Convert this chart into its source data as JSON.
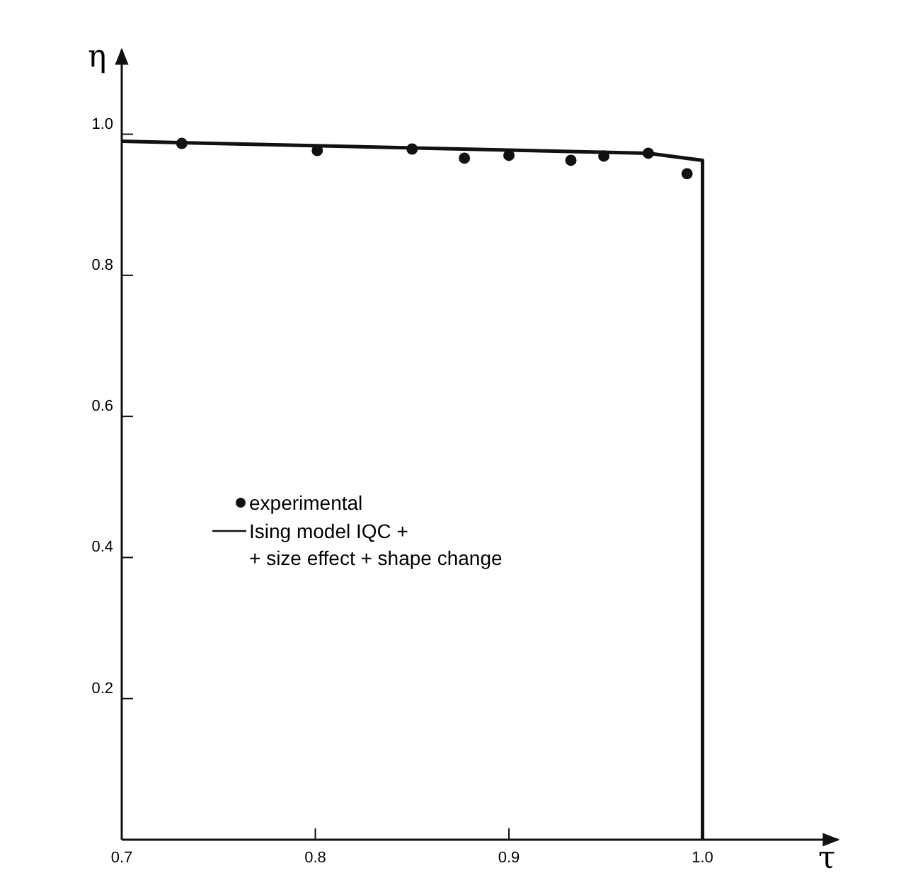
{
  "chart_data": {
    "type": "scatter",
    "xlabel": "τ",
    "ylabel": "η",
    "xlim": [
      0.7,
      1.07
    ],
    "ylim": [
      0,
      1.12
    ],
    "xticks": [
      0.7,
      0.8,
      0.9,
      {
        "value": 1.0,
        "label": "1.0"
      }
    ],
    "yticks": [
      {
        "value": 0.2,
        "label": "0.2"
      },
      {
        "value": 0.4,
        "label": "0.4"
      },
      {
        "value": 0.6,
        "label": "0.6"
      },
      {
        "value": 0.8,
        "label": "0.8"
      },
      {
        "value": 1.0,
        "label": "1.0"
      }
    ],
    "grid": false,
    "legend": "left",
    "series": [
      {
        "name": "experimental",
        "marker": "circle",
        "color": "#111111",
        "x": [
          0.731,
          0.801,
          0.85,
          0.877,
          0.9,
          0.932,
          0.949,
          0.972,
          0.992
        ],
        "values": [
          0.987,
          0.977,
          0.979,
          0.966,
          0.97,
          0.963,
          0.969,
          0.973,
          0.944
        ]
      },
      {
        "name": "Ising model IQC +\n+ size effect + shape change",
        "type": "line",
        "line_style": "solid",
        "color": "#111111",
        "x": [
          0.7,
          0.972,
          1.0,
          1.0
        ],
        "values": [
          0.99,
          0.973,
          0.963,
          0
        ]
      }
    ]
  }
}
